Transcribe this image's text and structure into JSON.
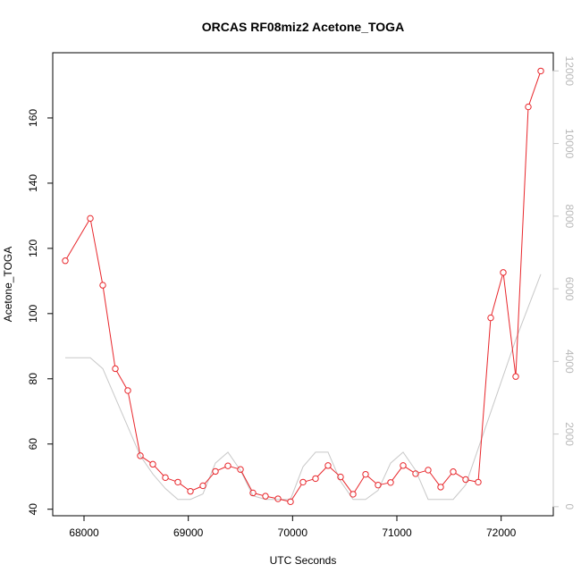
{
  "chart_data": {
    "type": "line",
    "title": "ORCAS RF08miz2 Acetone_TOGA",
    "xlabel": "UTC Seconds",
    "ylabel": "Acetone_TOGA",
    "xlim": [
      67700,
      72500
    ],
    "ylim": [
      38,
      180
    ],
    "y2lim": [
      -250,
      12500
    ],
    "x_ticks": [
      68000,
      69000,
      70000,
      71000,
      72000
    ],
    "y_ticks": [
      40,
      60,
      80,
      100,
      120,
      140,
      160
    ],
    "y2_ticks": [
      0,
      2000,
      4000,
      6000,
      8000,
      10000,
      12000
    ],
    "grid": false,
    "legend": "none",
    "series": [
      {
        "color": "#e8262b",
        "axis": "left",
        "marker": "open-circle",
        "x": [
          67820,
          68060,
          68180,
          68300,
          68420,
          68540,
          68660,
          68780,
          68900,
          69020,
          69140,
          69260,
          69380,
          69500,
          69620,
          69740,
          69860,
          69980,
          70100,
          70220,
          70340,
          70460,
          70580,
          70700,
          70820,
          70940,
          71060,
          71180,
          71300,
          71420,
          71540,
          71660,
          71780,
          71900,
          72020,
          72140,
          72260,
          72380
        ],
        "y": [
          116.2,
          129.2,
          108.7,
          83.1,
          76.4,
          56.4,
          53.8,
          49.7,
          48.3,
          45.5,
          47.2,
          51.6,
          53.3,
          52.2,
          45.0,
          44.0,
          43.2,
          42.3,
          48.3,
          49.4,
          53.4,
          49.9,
          44.6,
          50.7,
          47.4,
          48.2,
          53.4,
          50.9,
          52.0,
          46.8,
          51.5,
          49.1,
          48.3,
          98.7,
          112.6,
          80.7,
          163.4,
          174.4
        ]
      },
      {
        "color": "#c8c8c8",
        "axis": "right",
        "marker": "none",
        "x": [
          67820,
          68060,
          68180,
          68300,
          68420,
          68540,
          68660,
          68780,
          68900,
          69020,
          69140,
          69260,
          69380,
          69500,
          69620,
          69740,
          69860,
          69980,
          70100,
          70220,
          70340,
          70460,
          70580,
          70700,
          70820,
          70940,
          71060,
          71180,
          71300,
          71420,
          71540,
          71660,
          71780,
          71900,
          72020,
          72140,
          72260,
          72380
        ],
        "y": [
          4100,
          4100,
          3800,
          3000,
          2200,
          1400,
          900,
          500,
          200,
          200,
          350,
          1200,
          1500,
          1000,
          300,
          200,
          200,
          200,
          1100,
          1500,
          1500,
          700,
          200,
          200,
          450,
          1200,
          1500,
          1000,
          200,
          200,
          200,
          600,
          1600,
          2600,
          3600,
          4600,
          5500,
          6400
        ]
      }
    ]
  }
}
